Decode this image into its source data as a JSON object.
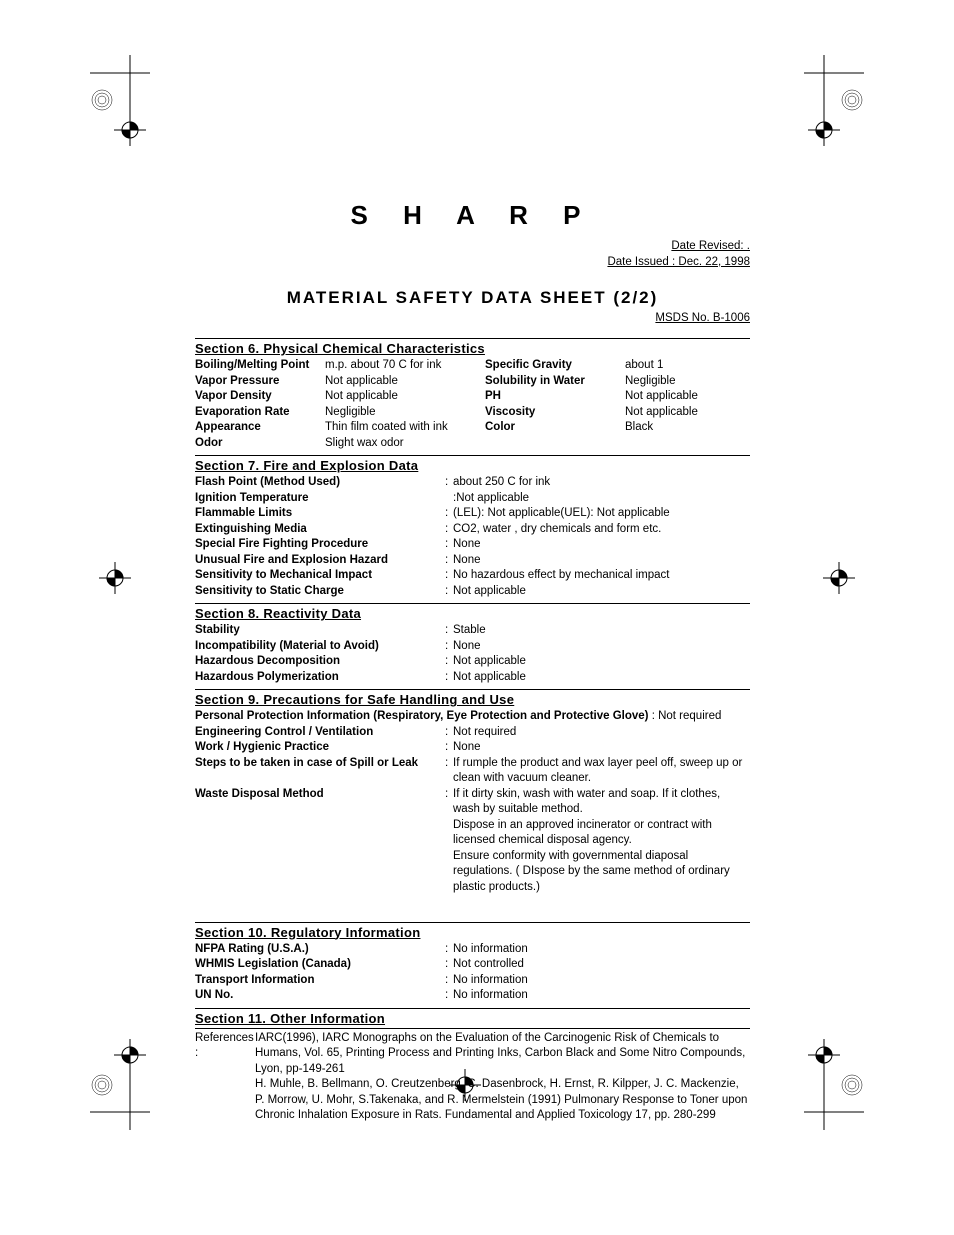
{
  "brand": "S H A R P",
  "dates": {
    "revised": "Date Revised:                          .",
    "issued": "Date Issued : Dec. 22, 1998"
  },
  "doc_title": "MATERIAL  SAFETY  DATA  SHEET  (2/2)",
  "msds_no": "MSDS No. B-1006",
  "section6": {
    "header": "Section 6. Physical Chemical Characteristics",
    "rows": [
      {
        "l1": "Boiling/Melting Point",
        "v1": "m.p. about 70 C for ink",
        "l2": "Specific Gravity",
        "v2": "about 1"
      },
      {
        "l1": "Vapor Pressure",
        "v1": "Not applicable",
        "l2": "Solubility in Water",
        "v2": "Negligible"
      },
      {
        "l1": "Vapor Density",
        "v1": "Not applicable",
        "l2": "PH",
        "v2": "Not applicable"
      },
      {
        "l1": "Evaporation Rate",
        "v1": "Negligible",
        "l2": "Viscosity",
        "v2": "Not applicable"
      },
      {
        "l1": "Appearance",
        "v1": "Thin film coated with ink",
        "l2": "Color",
        "v2": "Black"
      },
      {
        "l1": "Odor",
        "v1": "Slight wax odor",
        "l2": "",
        "v2": ""
      }
    ]
  },
  "section7": {
    "header": "Section 7. Fire and Explosion Data",
    "rows": [
      {
        "label": "Flash Point (Method Used)",
        "value": "about 250 C for ink"
      },
      {
        "label": "Ignition Temperature",
        "value": "Not applicable",
        "nocolon": true
      },
      {
        "label": "Flammable Limits",
        "value": "(LEL): Not applicable(UEL): Not applicable"
      },
      {
        "label": "Extinguishing Media",
        "value": "CO2, water , dry chemicals and form etc."
      },
      {
        "label": "Special Fire Fighting Procedure",
        "value": "None"
      },
      {
        "label": "Unusual Fire and Explosion Hazard",
        "value": "None"
      },
      {
        "label": "Sensitivity to Mechanical Impact",
        "value": "No hazardous effect by mechanical impact"
      },
      {
        "label": "Sensitivity to Static Charge",
        "value": "Not applicable"
      }
    ]
  },
  "section8": {
    "header": "Section 8. Reactivity Data",
    "rows": [
      {
        "label": "Stability",
        "value": "Stable"
      },
      {
        "label": "Incompatibility (Material to Avoid)",
        "value": "None"
      },
      {
        "label": "Hazardous Decomposition",
        "value": "Not applicable"
      },
      {
        "label": "Hazardous Polymerization",
        "value": "Not applicable"
      }
    ]
  },
  "section9": {
    "header": "Section 9. Precautions for Safe Handling and Use",
    "pp_label": "Personal Protection Information (Respiratory, Eye Protection and Protective Glove)",
    "pp_value": " : Not required",
    "rows": [
      {
        "label": "Engineering Control / Ventilation",
        "value": "Not required"
      },
      {
        "label": "Work / Hygienic Practice",
        "value": "None"
      },
      {
        "label": "Steps to be taken in case of Spill or Leak",
        "value": "If rumple the product and wax layer peel off, sweep up or clean with vacuum cleaner."
      },
      {
        "label": "Waste Disposal Method",
        "value": "If it dirty skin, wash with water and soap. If it clothes, wash by suitable method."
      }
    ],
    "extra": [
      "Dispose in an approved incinerator or contract with licensed chemical disposal agency.",
      "Ensure conformity with governmental diaposal regulations. ( DIspose by the same method of ordinary plastic products.)"
    ]
  },
  "section10": {
    "header": "Section 10.  Regulatory Information",
    "rows": [
      {
        "label": "NFPA Rating (U.S.A.)",
        "value": "No information"
      },
      {
        "label": "WHMIS Legislation (Canada)",
        "value": "Not controlled"
      },
      {
        "label": "Transport Information",
        "value": "No information"
      },
      {
        "label": "UN No.",
        "value": "No information"
      }
    ]
  },
  "section11": {
    "header": "Section 11.  Other Information",
    "refs_label": "References :",
    "refs_text": "IARC(1996), IARC Monographs on the Evaluation of the Carcinogenic Risk of Chemicals to Humans, Vol. 65, Printing Process and Printing Inks, Carbon Black and Some Nitro Compounds, Lyon, pp-149-261\nH. Muhle, B. Bellmann, O. Creutzenberg, C. Dasenbrock, H. Ernst, R. Kilpper, J. C. Mackenzie, P. Morrow, U. Mohr, S.Takenaka, and R. Mermelstein (1991) Pulmonary Response to Toner upon Chronic Inhalation Exposure in Rats.  Fundamental and Applied Toxicology 17, pp. 280-299"
  }
}
